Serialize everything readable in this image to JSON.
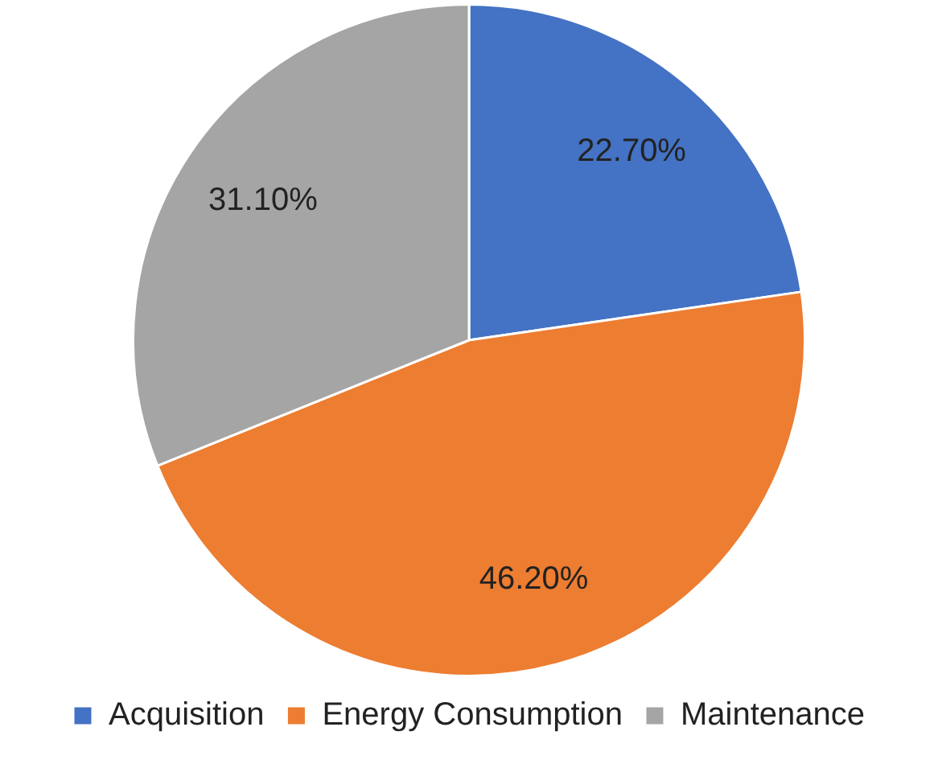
{
  "chart_data": {
    "type": "pie",
    "categories": [
      "Acquisition",
      "Energy Consumption",
      "Maintenance"
    ],
    "values": [
      22.7,
      46.2,
      31.1
    ],
    "colors": [
      "#4472c4",
      "#ed7d31",
      "#a5a5a5"
    ],
    "value_labels": [
      "22.70%",
      "46.20%",
      "31.10%"
    ],
    "legend": "bottom"
  }
}
